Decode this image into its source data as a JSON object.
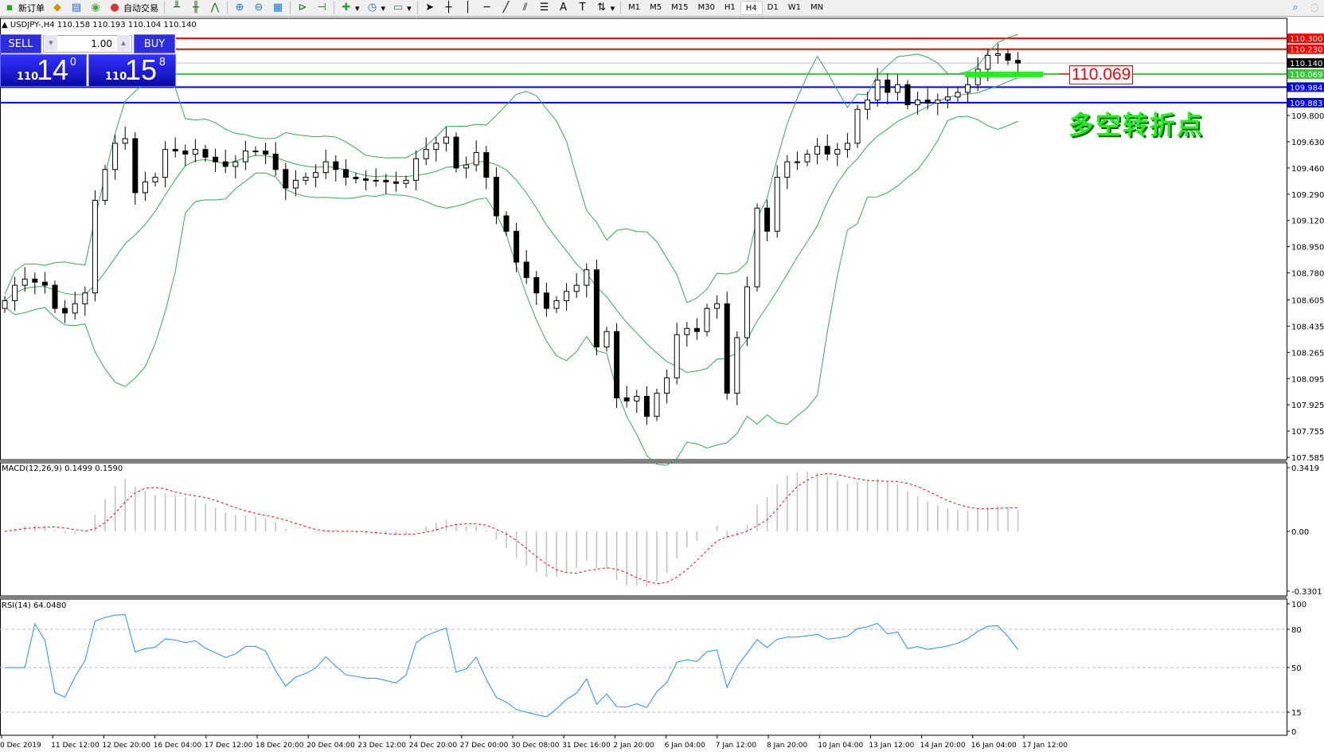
{
  "toolbar": {
    "new_order": "新订单",
    "auto_trading": "自动交易",
    "timeframes": [
      "M1",
      "M5",
      "M15",
      "M30",
      "H1",
      "H4",
      "D1",
      "W1",
      "MN"
    ],
    "active_timeframe": "H4"
  },
  "chart": {
    "header": "USDJPY-,H4  110.158 110.193 110.104 110.140",
    "symbol": "USDJPY-",
    "timeframe": "H4",
    "ohlc": {
      "open": 110.158,
      "high": 110.193,
      "low": 110.104,
      "close": 110.14
    }
  },
  "trade_panel": {
    "sell_label": "SELL",
    "buy_label": "BUY",
    "lot": "1.00",
    "sell_price": {
      "big": "110",
      "main": "14",
      "small": "0"
    },
    "buy_price": {
      "big": "110",
      "main": "15",
      "small": "8"
    }
  },
  "price_axis": {
    "ticks": [
      "109.800",
      "109.630",
      "109.460",
      "109.290",
      "109.120",
      "108.950",
      "108.780",
      "108.605",
      "108.435",
      "108.265",
      "108.095",
      "107.925",
      "107.755",
      "107.585"
    ]
  },
  "levels": [
    {
      "price": "110.300",
      "color": "#ff0000"
    },
    {
      "price": "110.230",
      "color": "#ff0000"
    },
    {
      "price": "110.140",
      "color": "#000000",
      "line": "#c0c0c0"
    },
    {
      "price": "110.069",
      "color": "#33cc33"
    },
    {
      "price": "109.984",
      "color": "#0000ff"
    },
    {
      "price": "109.883",
      "color": "#0000ff"
    }
  ],
  "annotation": {
    "level_label": "110.069",
    "text": "多空转折点"
  },
  "candles_close": [
    108.6,
    108.7,
    108.74,
    108.72,
    108.7,
    108.55,
    108.52,
    108.58,
    108.65,
    109.25,
    109.45,
    109.62,
    109.65,
    109.3,
    109.37,
    109.4,
    109.58,
    109.57,
    109.55,
    109.58,
    109.53,
    109.5,
    109.47,
    109.5,
    109.57,
    109.57,
    109.55,
    109.45,
    109.33,
    109.38,
    109.4,
    109.43,
    109.5,
    109.45,
    109.4,
    109.39,
    109.38,
    109.38,
    109.37,
    109.36,
    109.38,
    109.52,
    109.58,
    109.62,
    109.66,
    109.46,
    109.48,
    109.56,
    109.4,
    109.15,
    109.05,
    108.85,
    108.75,
    108.65,
    108.55,
    108.6,
    108.66,
    108.7,
    108.8,
    108.3,
    108.4,
    107.97,
    107.95,
    107.98,
    107.85,
    108.0,
    108.1,
    108.38,
    108.42,
    108.4,
    108.55,
    108.58,
    108.0,
    108.36,
    108.69,
    109.2,
    109.05,
    109.4,
    109.5,
    109.5,
    109.55,
    109.6,
    109.55,
    109.58,
    109.62,
    109.84,
    109.9,
    110.03,
    109.95,
    110.0,
    109.87,
    109.9,
    109.88,
    109.9,
    109.92,
    109.95,
    110.0,
    110.1,
    110.19,
    110.2,
    110.158,
    110.14
  ],
  "macd": {
    "label": "MACD(12,26,9) 0.1499 0.1590",
    "ticks": [
      "0.3419",
      "0.00",
      "-0.3301"
    ]
  },
  "rsi": {
    "label": "RSI(14) 64.0480",
    "ticks": [
      "100",
      "80",
      "50",
      "15",
      "0"
    ]
  },
  "time_axis": [
    "0 Dec 2019",
    "11 Dec 12:00",
    "12 Dec 20:00",
    "16 Dec 04:00",
    "17 Dec 12:00",
    "18 Dec 20:00",
    "20 Dec 04:00",
    "23 Dec 12:00",
    "24 Dec 20:00",
    "27 Dec 00:00",
    "30 Dec 08:00",
    "31 Dec 16:00",
    "2 Jan 20:00",
    "6 Jan 04:00",
    "7 Jan 12:00",
    "8 Jan 20:00",
    "10 Jan 04:00",
    "13 Jan 12:00",
    "14 Jan 20:00",
    "16 Jan 04:00",
    "17 Jan 12:00"
  ],
  "colors": {
    "bands": "#33aa55",
    "macd_hist": "#c0c0c0",
    "macd_signal": "#ff0000",
    "rsi": "#1e90ff",
    "bullish_candle": "#ffffff",
    "bearish_candle": "#000000"
  }
}
